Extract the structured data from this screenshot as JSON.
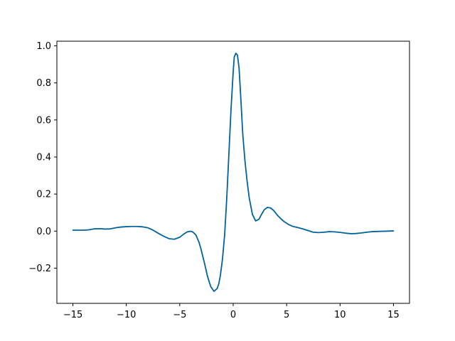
{
  "chart_data": {
    "type": "line",
    "title": "",
    "xlabel": "",
    "ylabel": "",
    "xlim": [
      -16.5,
      16.5
    ],
    "ylim": [
      -0.39,
      1.025
    ],
    "grid": false,
    "legend": "none",
    "x_ticks": [
      -15,
      -10,
      -5,
      0,
      5,
      10,
      15
    ],
    "x_tick_labels": [
      "−15",
      "−10",
      "−5",
      "0",
      "5",
      "10",
      "15"
    ],
    "y_ticks": [
      -0.2,
      0.0,
      0.2,
      0.4,
      0.6,
      0.8,
      1.0
    ],
    "y_tick_labels": [
      "−0.2",
      "0.0",
      "0.2",
      "0.4",
      "0.6",
      "0.8",
      "1.0"
    ],
    "series": [
      {
        "color": "#00639b",
        "x": [
          -15,
          -14,
          -13.5,
          -13,
          -12.5,
          -12,
          -11.5,
          -11,
          -10.5,
          -10,
          -9.5,
          -9,
          -8.5,
          -8,
          -7.5,
          -7,
          -6.5,
          -6,
          -5.5,
          -5,
          -4.6,
          -4.3,
          -4.0,
          -3.8,
          -3.5,
          -3.2,
          -3.0,
          -2.7,
          -2.4,
          -2.1,
          -1.8,
          -1.5,
          -1.35,
          -1.2,
          -1.0,
          -0.8,
          -0.6,
          -0.4,
          -0.2,
          0.0,
          0.1,
          0.25,
          0.4,
          0.55,
          0.7,
          0.9,
          1.1,
          1.3,
          1.5,
          1.8,
          2.1,
          2.4,
          2.6,
          2.9,
          3.2,
          3.5,
          3.8,
          4.1,
          4.4,
          4.8,
          5.2,
          5.6,
          6,
          6.5,
          7,
          7.5,
          8,
          8.5,
          9,
          9.5,
          10,
          10.5,
          11,
          11.5,
          12,
          12.5,
          13,
          13.5,
          14,
          14.5,
          15
        ],
        "y": [
          0.005,
          0.005,
          0.007,
          0.012,
          0.013,
          0.011,
          0.012,
          0.018,
          0.022,
          0.024,
          0.025,
          0.025,
          0.023,
          0.018,
          0.005,
          -0.012,
          -0.028,
          -0.041,
          -0.044,
          -0.033,
          -0.015,
          -0.004,
          -0.001,
          -0.004,
          -0.02,
          -0.06,
          -0.1,
          -0.17,
          -0.245,
          -0.3,
          -0.325,
          -0.31,
          -0.285,
          -0.24,
          -0.15,
          -0.02,
          0.18,
          0.42,
          0.66,
          0.86,
          0.94,
          0.96,
          0.95,
          0.88,
          0.73,
          0.52,
          0.38,
          0.27,
          0.18,
          0.09,
          0.055,
          0.063,
          0.085,
          0.115,
          0.128,
          0.125,
          0.11,
          0.088,
          0.07,
          0.05,
          0.035,
          0.025,
          0.02,
          0.012,
          0.003,
          -0.006,
          -0.008,
          -0.006,
          -0.003,
          -0.004,
          -0.007,
          -0.011,
          -0.014,
          -0.013,
          -0.01,
          -0.006,
          -0.003,
          -0.002,
          -0.001,
          0.0,
          0.001
        ]
      }
    ]
  }
}
